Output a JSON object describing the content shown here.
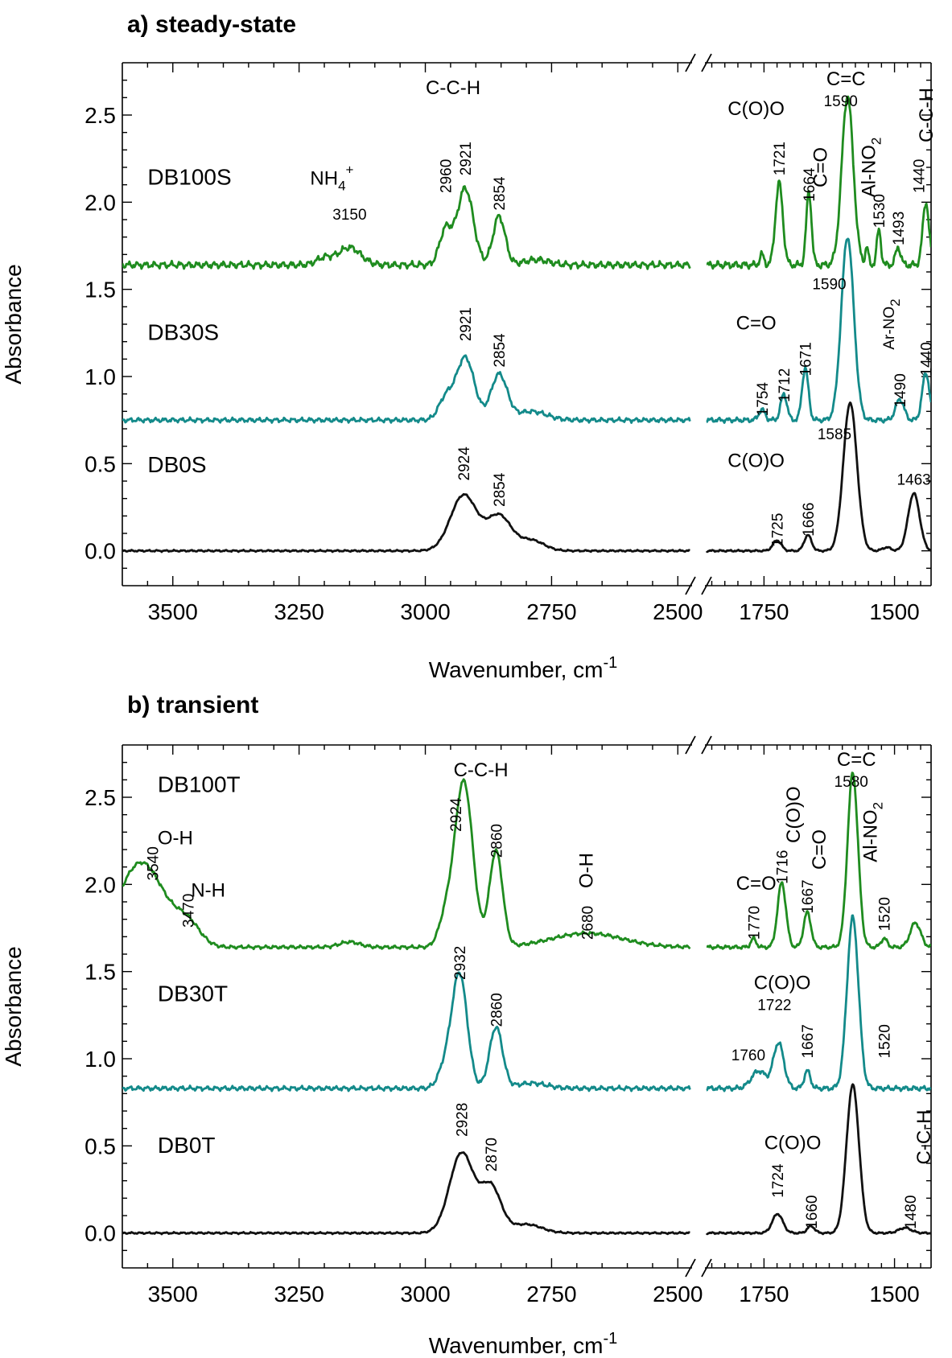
{
  "figure": {
    "break_mark": "//"
  },
  "chart_data": [
    {
      "type": "line",
      "title": "a) steady-state",
      "xlabel": "Wavenumber, cm",
      "xlabel_sup": "-1",
      "ylabel": "Absorbance",
      "x_axis": "broken",
      "xlim_left": [
        3600,
        2475
      ],
      "xlim_right": [
        1860,
        1430
      ],
      "ylim": [
        -0.2,
        2.8
      ],
      "x_ticks_left": [
        3500,
        3250,
        3000,
        2750,
        2500
      ],
      "x_ticks_right": [
        1750,
        1500
      ],
      "y_ticks": [
        0.0,
        0.5,
        1.0,
        1.5,
        2.0,
        2.5
      ],
      "y_tick_labels": [
        "0.0",
        "0.5",
        "1.0",
        "1.5",
        "2.0",
        "2.5"
      ],
      "grid": false,
      "series": [
        {
          "name": "DB100S",
          "color": "#1f8c1f",
          "baseline": 1.64,
          "peaks": [
            {
              "x": 3200,
              "h": 0.04,
              "w": 16
            },
            {
              "x": 3150,
              "h": 0.1,
              "w": 22
            },
            {
              "x": 2960,
              "h": 0.2,
              "w": 12
            },
            {
              "x": 2921,
              "h": 0.44,
              "w": 16
            },
            {
              "x": 2854,
              "h": 0.28,
              "w": 12
            },
            {
              "x": 2780,
              "h": 0.03,
              "w": 25
            },
            {
              "x": 1754,
              "h": 0.06,
              "w": 4
            },
            {
              "x": 1721,
              "h": 0.47,
              "w": 7
            },
            {
              "x": 1664,
              "h": 0.42,
              "w": 5
            },
            {
              "x": 1590,
              "h": 0.97,
              "w": 11
            },
            {
              "x": 1553,
              "h": 0.1,
              "w": 3
            },
            {
              "x": 1530,
              "h": 0.2,
              "w": 4
            },
            {
              "x": 1493,
              "h": 0.1,
              "w": 5
            },
            {
              "x": 1440,
              "h": 0.36,
              "w": 6
            }
          ],
          "noise": 0.012
        },
        {
          "name": "DB30S",
          "color": "#138a8a",
          "baseline": 0.75,
          "peaks": [
            {
              "x": 2960,
              "h": 0.12,
              "w": 14
            },
            {
              "x": 2921,
              "h": 0.36,
              "w": 18
            },
            {
              "x": 2854,
              "h": 0.26,
              "w": 16
            },
            {
              "x": 2790,
              "h": 0.05,
              "w": 30
            },
            {
              "x": 1754,
              "h": 0.06,
              "w": 6
            },
            {
              "x": 1712,
              "h": 0.15,
              "w": 6
            },
            {
              "x": 1671,
              "h": 0.3,
              "w": 6
            },
            {
              "x": 1590,
              "h": 1.05,
              "w": 12
            },
            {
              "x": 1490,
              "h": 0.12,
              "w": 8
            },
            {
              "x": 1440,
              "h": 0.27,
              "w": 7
            }
          ],
          "noise": 0.008
        },
        {
          "name": "DB0S",
          "color": "#111111",
          "baseline": 0.0,
          "peaks": [
            {
              "x": 2924,
              "h": 0.32,
              "w": 26
            },
            {
              "x": 2854,
              "h": 0.2,
              "w": 24
            },
            {
              "x": 2790,
              "h": 0.06,
              "w": 25
            },
            {
              "x": 1725,
              "h": 0.06,
              "w": 8
            },
            {
              "x": 1666,
              "h": 0.09,
              "w": 7
            },
            {
              "x": 1585,
              "h": 0.85,
              "w": 13
            },
            {
              "x": 1515,
              "h": 0.02,
              "w": 8
            },
            {
              "x": 1463,
              "h": 0.33,
              "w": 11
            }
          ],
          "noise": 0.003
        }
      ],
      "annotations": [
        {
          "text": "C-C-H",
          "x": 2945,
          "y": 2.62,
          "rotate": false,
          "size": "ann"
        },
        {
          "text": "NH",
          "sub": "4",
          "sup": "+",
          "x": 3185,
          "y": 2.1,
          "rotate": false,
          "size": "ann"
        },
        {
          "text": "3150",
          "x": 3150,
          "y": 1.9,
          "rotate": false,
          "size": "ann-small"
        },
        {
          "text": "2960",
          "x": 2960,
          "y": 2.15,
          "rotate": true,
          "size": "ann-small"
        },
        {
          "text": "2921",
          "x": 2921,
          "y": 2.25,
          "rotate": true,
          "size": "ann-small"
        },
        {
          "text": "2854",
          "x": 2854,
          "y": 2.05,
          "rotate": true,
          "size": "ann-small"
        },
        {
          "text": "C(O)O",
          "x": 1765,
          "y": 2.5,
          "rotate": false,
          "size": "ann"
        },
        {
          "text": "C=C",
          "x": 1593,
          "y": 2.67,
          "rotate": false,
          "size": "ann"
        },
        {
          "text": "1590",
          "x": 1603,
          "y": 2.55,
          "rotate": false,
          "size": "ann-small"
        },
        {
          "text": "1721",
          "x": 1721,
          "y": 2.25,
          "rotate": true,
          "size": "ann-small"
        },
        {
          "text": "1664",
          "x": 1664,
          "y": 2.1,
          "rotate": true,
          "size": "ann-small"
        },
        {
          "text": "C=O",
          "x": 1640,
          "y": 2.2,
          "rotate": true,
          "size": "ann"
        },
        {
          "text": "Al-NO",
          "sub": "2",
          "x": 1548,
          "y": 2.2,
          "rotate": true,
          "size": "ann"
        },
        {
          "text": "1530",
          "x": 1530,
          "y": 1.95,
          "rotate": true,
          "size": "ann-small"
        },
        {
          "text": "1493",
          "x": 1493,
          "y": 1.85,
          "rotate": true,
          "size": "ann-small"
        },
        {
          "text": "1440",
          "x": 1454,
          "y": 2.15,
          "rotate": true,
          "size": "ann-small"
        },
        {
          "text": "C-C-H",
          "x": 1438,
          "y": 2.5,
          "rotate": true,
          "size": "ann"
        },
        {
          "text": "DB100S",
          "x": 3550,
          "y": 2.1,
          "rotate": false,
          "size": "sample-label"
        },
        {
          "text": "DB30S",
          "x": 3550,
          "y": 1.21,
          "rotate": false,
          "size": "sample-label"
        },
        {
          "text": "DB0S",
          "x": 3550,
          "y": 0.45,
          "rotate": false,
          "size": "sample-label"
        },
        {
          "text": "1590",
          "x": 1625,
          "y": 1.5,
          "rotate": false,
          "size": "ann-small"
        },
        {
          "text": "C=O",
          "x": 1765,
          "y": 1.27,
          "rotate": false,
          "size": "ann"
        },
        {
          "text": "Ar-NO",
          "sub": "2",
          "x": 1512,
          "y": 1.3,
          "rotate": true,
          "size": "ann-small"
        },
        {
          "text": "1754",
          "x": 1754,
          "y": 0.87,
          "rotate": true,
          "size": "ann-small"
        },
        {
          "text": "1712",
          "x": 1712,
          "y": 0.95,
          "rotate": true,
          "size": "ann-small"
        },
        {
          "text": "1671",
          "x": 1671,
          "y": 1.1,
          "rotate": true,
          "size": "ann-small"
        },
        {
          "text": "1490",
          "x": 1490,
          "y": 0.92,
          "rotate": true,
          "size": "ann-small"
        },
        {
          "text": "1440",
          "x": 1440,
          "y": 1.1,
          "rotate": true,
          "size": "ann-small"
        },
        {
          "text": "2921",
          "x": 2921,
          "y": 1.3,
          "rotate": true,
          "size": "ann-small"
        },
        {
          "text": "2854",
          "x": 2854,
          "y": 1.15,
          "rotate": true,
          "size": "ann-small"
        },
        {
          "text": "1585",
          "x": 1615,
          "y": 0.64,
          "rotate": false,
          "size": "ann-small"
        },
        {
          "text": "C(O)O",
          "x": 1765,
          "y": 0.48,
          "rotate": false,
          "size": "ann"
        },
        {
          "text": "1463",
          "x": 1463,
          "y": 0.38,
          "rotate": false,
          "size": "ann-small"
        },
        {
          "text": "1725",
          "x": 1725,
          "y": 0.12,
          "rotate": true,
          "size": "ann-small"
        },
        {
          "text": "1666",
          "x": 1666,
          "y": 0.18,
          "rotate": true,
          "size": "ann-small"
        },
        {
          "text": "2924",
          "x": 2924,
          "y": 0.5,
          "rotate": true,
          "size": "ann-small"
        },
        {
          "text": "2854",
          "x": 2854,
          "y": 0.35,
          "rotate": true,
          "size": "ann-small"
        }
      ]
    },
    {
      "type": "line",
      "title": "b) transient",
      "xlabel": "Wavenumber, cm",
      "xlabel_sup": "-1",
      "ylabel": "Absorbance",
      "x_axis": "broken",
      "xlim_left": [
        3600,
        2475
      ],
      "xlim_right": [
        1860,
        1430
      ],
      "ylim": [
        -0.2,
        2.8
      ],
      "x_ticks_left": [
        3500,
        3250,
        3000,
        2750,
        2500
      ],
      "x_ticks_right": [
        1750,
        1500
      ],
      "y_ticks": [
        0.0,
        0.5,
        1.0,
        1.5,
        2.0,
        2.5
      ],
      "y_tick_labels": [
        "0.0",
        "0.5",
        "1.0",
        "1.5",
        "2.0",
        "2.5"
      ],
      "grid": false,
      "series": [
        {
          "name": "DB100T",
          "color": "#1f8c1f",
          "baseline": 1.64,
          "peaks": [
            {
              "x": 3580,
              "h": 0.3,
              "w": 40
            },
            {
              "x": 3540,
              "h": 0.25,
              "w": 40
            },
            {
              "x": 3470,
              "h": 0.12,
              "w": 25
            },
            {
              "x": 3150,
              "h": 0.03,
              "w": 20
            },
            {
              "x": 2960,
              "h": 0.15,
              "w": 14
            },
            {
              "x": 2924,
              "h": 0.95,
              "w": 18
            },
            {
              "x": 2860,
              "h": 0.55,
              "w": 13
            },
            {
              "x": 2680,
              "h": 0.08,
              "w": 70
            },
            {
              "x": 1770,
              "h": 0.05,
              "w": 5
            },
            {
              "x": 1716,
              "h": 0.37,
              "w": 8
            },
            {
              "x": 1667,
              "h": 0.2,
              "w": 7
            },
            {
              "x": 1580,
              "h": 1.0,
              "w": 10
            },
            {
              "x": 1520,
              "h": 0.05,
              "w": 6
            },
            {
              "x": 1460,
              "h": 0.14,
              "w": 10
            }
          ],
          "noise": 0.006
        },
        {
          "name": "DB30T",
          "color": "#138a8a",
          "baseline": 0.83,
          "peaks": [
            {
              "x": 2960,
              "h": 0.12,
              "w": 14
            },
            {
              "x": 2932,
              "h": 0.65,
              "w": 15
            },
            {
              "x": 2860,
              "h": 0.35,
              "w": 13
            },
            {
              "x": 2790,
              "h": 0.03,
              "w": 30
            },
            {
              "x": 1760,
              "h": 0.1,
              "w": 14
            },
            {
              "x": 1722,
              "h": 0.26,
              "w": 10
            },
            {
              "x": 1667,
              "h": 0.1,
              "w": 6
            },
            {
              "x": 1580,
              "h": 0.98,
              "w": 11
            }
          ],
          "noise": 0.008
        },
        {
          "name": "DB0T",
          "color": "#111111",
          "baseline": 0.0,
          "peaks": [
            {
              "x": 2928,
              "h": 0.46,
              "w": 24
            },
            {
              "x": 2870,
              "h": 0.26,
              "w": 20
            },
            {
              "x": 2800,
              "h": 0.05,
              "w": 30
            },
            {
              "x": 1724,
              "h": 0.11,
              "w": 10
            },
            {
              "x": 1660,
              "h": 0.04,
              "w": 7
            },
            {
              "x": 1580,
              "h": 0.85,
              "w": 12
            },
            {
              "x": 1480,
              "h": 0.03,
              "w": 12
            }
          ],
          "noise": 0.003
        }
      ],
      "annotations": [
        {
          "text": "DB100T",
          "x": 3530,
          "y": 2.53,
          "rotate": false,
          "size": "sample-label"
        },
        {
          "text": "O-H",
          "x": 3495,
          "y": 2.23,
          "rotate": false,
          "size": "ann"
        },
        {
          "text": "3540",
          "x": 3540,
          "y": 2.12,
          "rotate": true,
          "size": "ann-small"
        },
        {
          "text": "3470",
          "x": 3470,
          "y": 1.85,
          "rotate": true,
          "size": "ann-small"
        },
        {
          "text": "N-H",
          "x": 3430,
          "y": 1.93,
          "rotate": false,
          "size": "ann"
        },
        {
          "text": "C-C-H",
          "x": 2890,
          "y": 2.62,
          "rotate": false,
          "size": "ann"
        },
        {
          "text": "2924",
          "x": 2940,
          "y": 2.4,
          "rotate": true,
          "size": "ann-small"
        },
        {
          "text": "2860",
          "x": 2860,
          "y": 2.25,
          "rotate": true,
          "size": "ann-small"
        },
        {
          "text": "O-H",
          "x": 2680,
          "y": 2.08,
          "rotate": true,
          "size": "ann"
        },
        {
          "text": "2680",
          "x": 2680,
          "y": 1.78,
          "rotate": true,
          "size": "ann-small"
        },
        {
          "text": "2932",
          "x": 2932,
          "y": 1.55,
          "rotate": true,
          "size": "ann-small"
        },
        {
          "text": "DB30T",
          "x": 3530,
          "y": 1.33,
          "rotate": false,
          "size": "sample-label"
        },
        {
          "text": "2860",
          "x": 2860,
          "y": 1.28,
          "rotate": true,
          "size": "ann-small"
        },
        {
          "text": "DB0T",
          "x": 3530,
          "y": 0.46,
          "rotate": false,
          "size": "sample-label"
        },
        {
          "text": "2928",
          "x": 2928,
          "y": 0.65,
          "rotate": true,
          "size": "ann-small"
        },
        {
          "text": "2870",
          "x": 2870,
          "y": 0.45,
          "rotate": true,
          "size": "ann-small"
        },
        {
          "text": "C=O",
          "x": 1765,
          "y": 1.97,
          "rotate": false,
          "size": "ann"
        },
        {
          "text": "1770",
          "x": 1770,
          "y": 1.78,
          "rotate": true,
          "size": "ann-small"
        },
        {
          "text": "1716",
          "x": 1716,
          "y": 2.1,
          "rotate": true,
          "size": "ann-small"
        },
        {
          "text": "C(O)O",
          "x": 1692,
          "y": 2.4,
          "rotate": true,
          "size": "ann"
        },
        {
          "text": "1667",
          "x": 1667,
          "y": 1.93,
          "rotate": true,
          "size": "ann-small"
        },
        {
          "text": "C=O",
          "x": 1643,
          "y": 2.2,
          "rotate": true,
          "size": "ann"
        },
        {
          "text": "C=C",
          "x": 1573,
          "y": 2.68,
          "rotate": false,
          "size": "ann"
        },
        {
          "text": "1580",
          "x": 1583,
          "y": 2.56,
          "rotate": false,
          "size": "ann-small"
        },
        {
          "text": "Al-NO",
          "sub": "2",
          "x": 1545,
          "y": 2.3,
          "rotate": true,
          "size": "ann"
        },
        {
          "text": "1520",
          "x": 1520,
          "y": 1.83,
          "rotate": true,
          "size": "ann-small"
        },
        {
          "text": "C(O)O",
          "x": 1715,
          "y": 1.4,
          "rotate": false,
          "size": "ann"
        },
        {
          "text": "1722",
          "x": 1730,
          "y": 1.28,
          "rotate": false,
          "size": "ann-small"
        },
        {
          "text": "1760",
          "x": 1780,
          "y": 0.99,
          "rotate": false,
          "size": "ann-small"
        },
        {
          "text": "1667",
          "x": 1667,
          "y": 1.1,
          "rotate": true,
          "size": "ann-small"
        },
        {
          "text": "1520",
          "x": 1520,
          "y": 1.1,
          "rotate": true,
          "size": "ann-small"
        },
        {
          "text": "C(O)O",
          "x": 1695,
          "y": 0.48,
          "rotate": false,
          "size": "ann"
        },
        {
          "text": "1724",
          "x": 1724,
          "y": 0.3,
          "rotate": true,
          "size": "ann-small"
        },
        {
          "text": "1660",
          "x": 1660,
          "y": 0.12,
          "rotate": true,
          "size": "ann-small"
        },
        {
          "text": "C-C-H",
          "x": 1442,
          "y": 0.55,
          "rotate": true,
          "size": "ann"
        },
        {
          "text": "1480",
          "x": 1470,
          "y": 0.12,
          "rotate": true,
          "size": "ann-small"
        }
      ]
    }
  ]
}
